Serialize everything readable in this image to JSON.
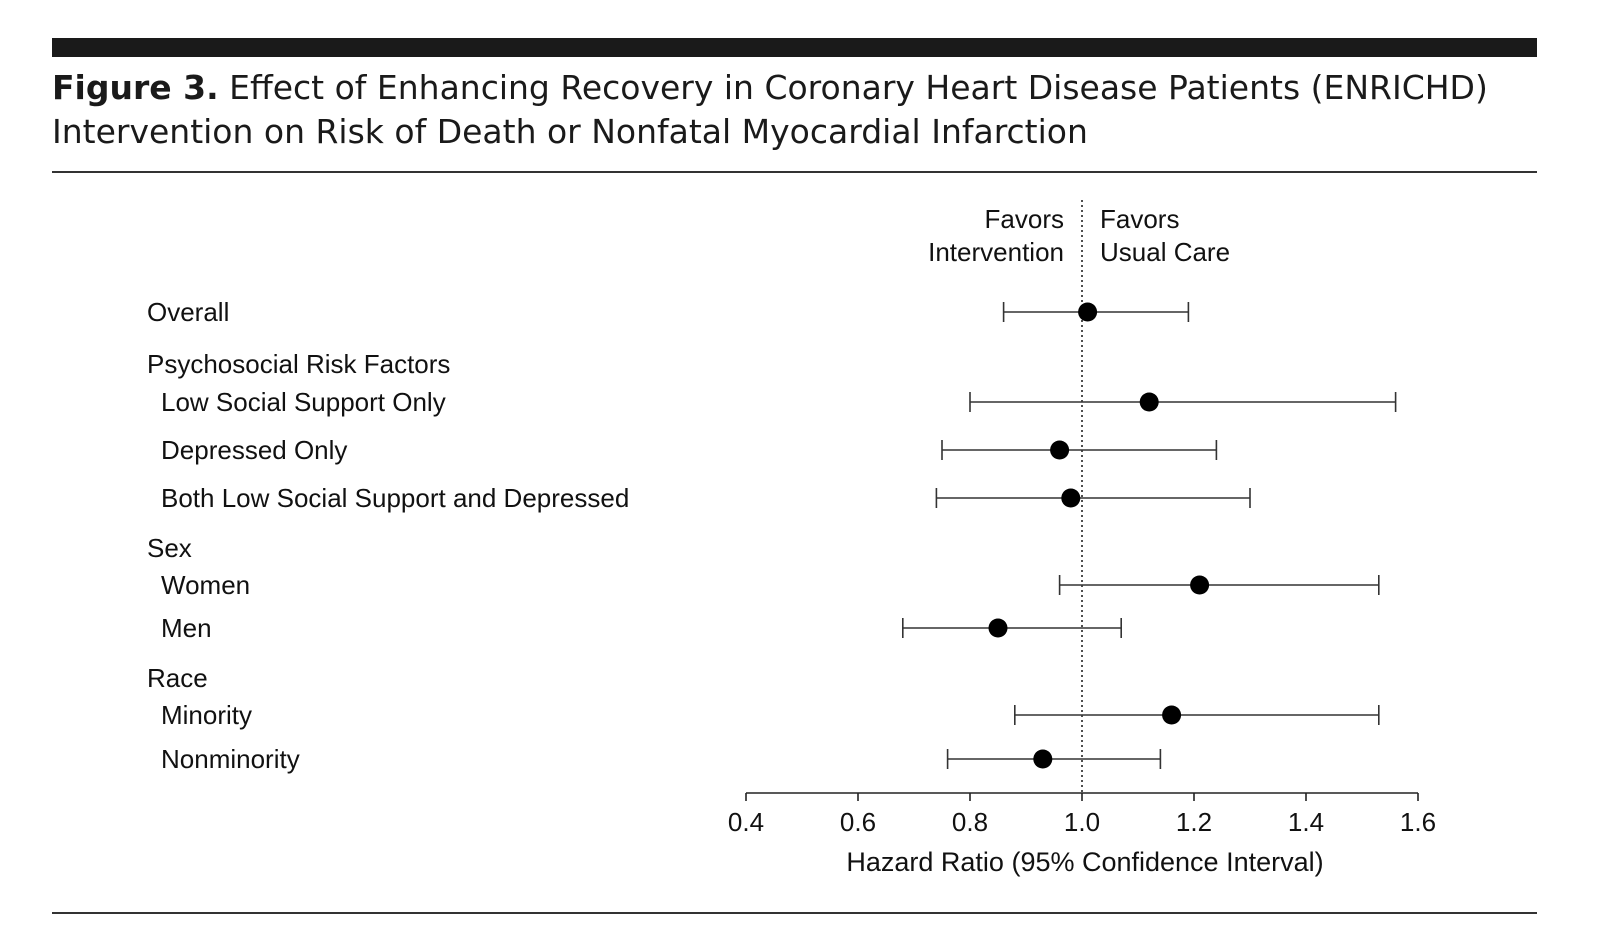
{
  "figure": {
    "label": "Figure 3.",
    "title": "Effect of Enhancing Recovery in Coronary Heart Disease Patients (ENRICHD) Intervention on Risk of Death or Nonfatal Myocardial Infarction"
  },
  "chart_data": {
    "type": "forest",
    "xlabel": "Hazard Ratio (95% Confidence Interval)",
    "xlim": [
      0.4,
      1.6
    ],
    "xticks": [
      "0.4",
      "0.6",
      "0.8",
      "1.0",
      "1.2",
      "1.4",
      "1.6"
    ],
    "reference_line": 1.0,
    "favors_left": [
      "Favors",
      "Intervention"
    ],
    "favors_right": [
      "Favors",
      "Usual Care"
    ],
    "rows": [
      {
        "label": "Overall",
        "header": false,
        "indent": false,
        "hr": 1.01,
        "lo": 0.86,
        "hi": 1.19
      },
      {
        "label": "Psychosocial Risk Factors",
        "header": true,
        "indent": false
      },
      {
        "label": "Low Social Support Only",
        "header": false,
        "indent": true,
        "hr": 1.12,
        "lo": 0.8,
        "hi": 1.56
      },
      {
        "label": "Depressed Only",
        "header": false,
        "indent": true,
        "hr": 0.96,
        "lo": 0.75,
        "hi": 1.24
      },
      {
        "label": "Both Low Social Support and Depressed",
        "header": false,
        "indent": true,
        "hr": 0.98,
        "lo": 0.74,
        "hi": 1.3
      },
      {
        "label": "Sex",
        "header": true,
        "indent": false
      },
      {
        "label": "Women",
        "header": false,
        "indent": true,
        "hr": 1.21,
        "lo": 0.96,
        "hi": 1.53
      },
      {
        "label": "Men",
        "header": false,
        "indent": true,
        "hr": 0.85,
        "lo": 0.68,
        "hi": 1.07
      },
      {
        "label": "Race",
        "header": true,
        "indent": false
      },
      {
        "label": "Minority",
        "header": false,
        "indent": true,
        "hr": 1.16,
        "lo": 0.88,
        "hi": 1.53
      },
      {
        "label": "Nonminority",
        "header": false,
        "indent": true,
        "hr": 0.93,
        "lo": 0.76,
        "hi": 1.14
      }
    ]
  }
}
